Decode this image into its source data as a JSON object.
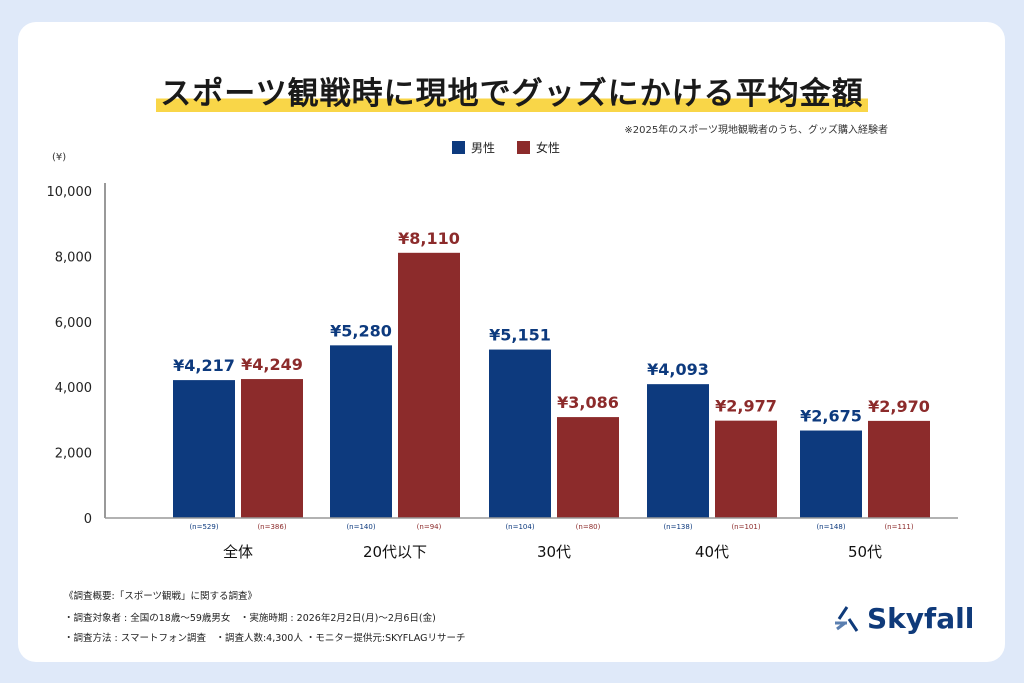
{
  "title": "スポーツ観戦時に現地でグッズにかける平均金額",
  "note": "※2025年のスポーツ現地観戦者のうち、グッズ購入経験者",
  "colors": {
    "male": "#0d3a7e",
    "female": "#8c2b2b",
    "highlight": "#f9d648"
  },
  "chart_data": {
    "type": "bar",
    "ylabel": "(¥)",
    "ylim": [
      0,
      10000
    ],
    "yticks": [
      "0",
      "2,000",
      "4,000",
      "6,000",
      "8,000",
      "10,000"
    ],
    "categories": [
      "全体",
      "20代以下",
      "30代",
      "40代",
      "50代"
    ],
    "series": [
      {
        "name": "男性",
        "values": [
          4217,
          5280,
          5151,
          4093,
          2675
        ],
        "labels": [
          "¥4,217",
          "¥5,280",
          "¥5,151",
          "¥4,093",
          "¥2,675"
        ],
        "n": [
          "(n=529)",
          "(n=140)",
          "(n=104)",
          "(n=138)",
          "(n=148)"
        ]
      },
      {
        "name": "女性",
        "values": [
          4249,
          8110,
          3086,
          2977,
          2970
        ],
        "labels": [
          "¥4,249",
          "¥8,110",
          "¥3,086",
          "¥2,977",
          "¥2,970"
        ],
        "n": [
          "(n=386)",
          "(n=94)",
          "(n=80)",
          "(n=101)",
          "(n=111)"
        ]
      }
    ],
    "legend": "top-center",
    "grid": false
  },
  "footer": {
    "line1": "《調査概要:「スポーツ観戦」に関する調査》",
    "line2": "・調査対象者 : 全国の18歳〜59歳男女　・実施時期 : 2026年2月2日(月)〜2月6日(金)",
    "line3": "・調査方法 : スマートフォン調査　・調査人数:4,300人 ・モニター提供元:SKYFLAGリサーチ"
  },
  "logo": "Skyfall"
}
